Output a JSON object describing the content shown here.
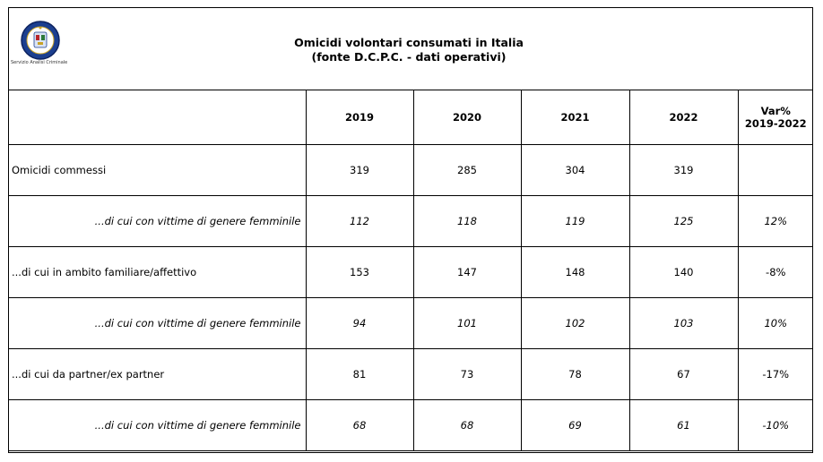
{
  "logo": {
    "caption": "Servizio Analisi Criminale"
  },
  "title": {
    "line1": "Omicidi volontari consumati in Italia",
    "line2": "(fonte D.C.P.C. - dati operativi)"
  },
  "header": [
    "2019",
    "2020",
    "2021",
    "2022"
  ],
  "var_header": {
    "line1": "Var%",
    "line2": "2019-2022"
  },
  "rows": [
    {
      "label": "Omicidi commessi",
      "values": [
        "319",
        "285",
        "304",
        "319"
      ],
      "var": ""
    },
    {
      "label": "...di cui con vittime di genere femminile",
      "values": [
        "112",
        "118",
        "119",
        "125"
      ],
      "var": "12%"
    },
    {
      "label": "...di cui in ambito familiare/affettivo",
      "values": [
        "153",
        "147",
        "148",
        "140"
      ],
      "var": "-8%"
    },
    {
      "label": "...di cui con vittime di genere femminile",
      "values": [
        "94",
        "101",
        "102",
        "103"
      ],
      "var": "10%"
    },
    {
      "label": "...di cui da partner/ex partner",
      "values": [
        "81",
        "73",
        "78",
        "67"
      ],
      "var": "-17%"
    },
    {
      "label": "...di cui con vittime di genere femminile",
      "values": [
        "68",
        "68",
        "69",
        "61"
      ],
      "var": "-10%"
    }
  ]
}
